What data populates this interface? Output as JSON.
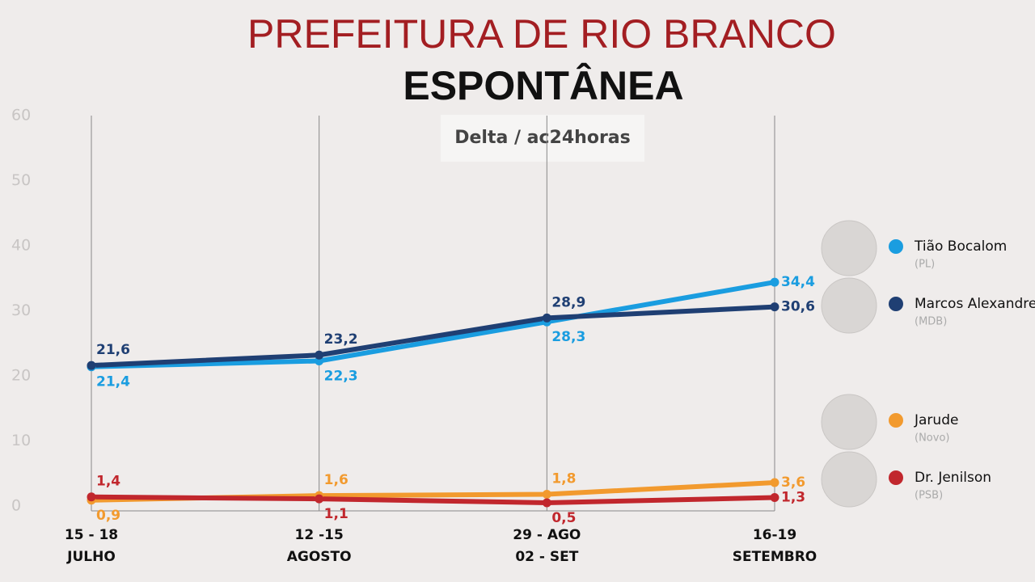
{
  "chart_data": {
    "type": "line",
    "title": "PREFEITURA DE RIO BRANCO",
    "subtitle": "ESPONTÂNEA",
    "source": "Delta / ac24horas",
    "categories": [
      [
        "15 - 18",
        "JULHO"
      ],
      [
        "12 -15",
        "AGOSTO"
      ],
      [
        "29 - AGO",
        "02 - SET"
      ],
      [
        "16-19",
        "SETEMBRO"
      ]
    ],
    "ylim": [
      0,
      60
    ],
    "yticks": [
      0,
      10,
      20,
      30,
      40,
      50,
      60
    ],
    "grid": true,
    "series": [
      {
        "name": "Tião Bocalom",
        "party": "(PL)",
        "color": "#1a9de0",
        "values": [
          21.4,
          22.3,
          28.3,
          34.4
        ],
        "value_labels": [
          "21,4",
          "22,3",
          "28,3",
          "34,4"
        ]
      },
      {
        "name": "Marcos Alexandre",
        "party": "(MDB)",
        "color": "#1f3f73",
        "values": [
          21.6,
          23.2,
          28.9,
          30.6
        ],
        "value_labels": [
          "21,6",
          "23,2",
          "28,9",
          "30,6"
        ]
      },
      {
        "name": "Jarude",
        "party": "(Novo)",
        "color": "#f29a2e",
        "values": [
          0.9,
          1.6,
          1.8,
          3.6
        ],
        "value_labels": [
          "0,9",
          "1,6",
          "1,8",
          "3,6"
        ]
      },
      {
        "name": "Dr. Jenilson",
        "party": "(PSB)",
        "color": "#c1272d",
        "values": [
          1.4,
          1.1,
          0.5,
          1.3
        ],
        "value_labels": [
          "1,4",
          "1,1",
          "0,5",
          "1,3"
        ]
      }
    ]
  }
}
